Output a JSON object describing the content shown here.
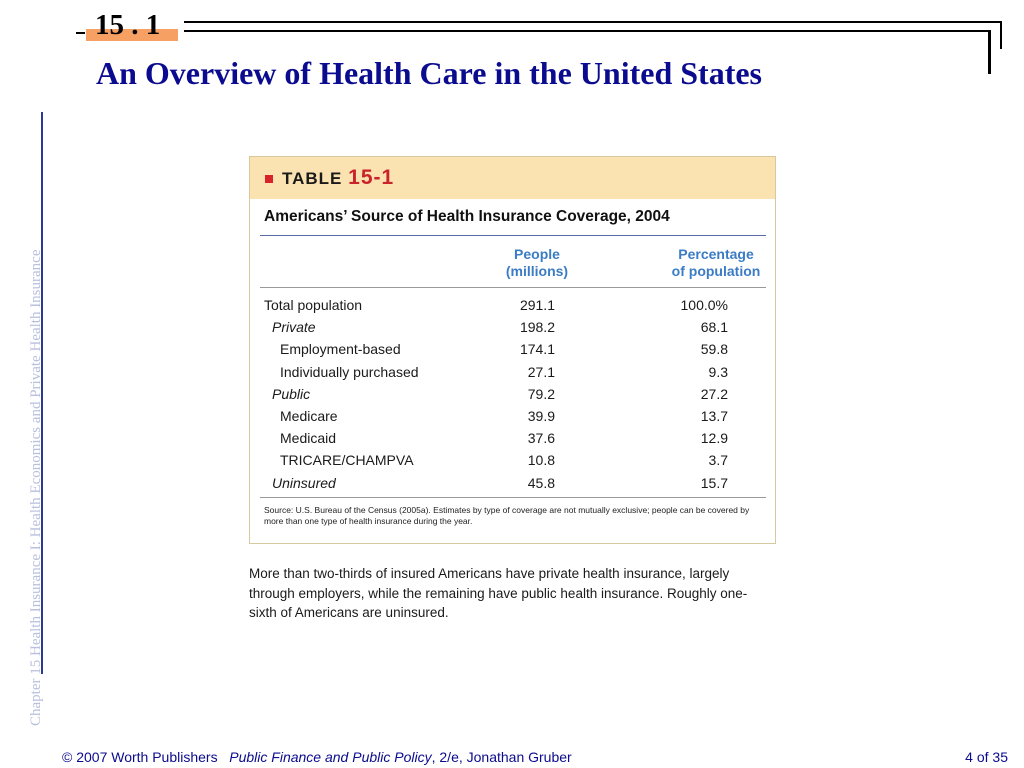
{
  "header": {
    "section_number": "15 . 1",
    "title": "An Overview of Health Care in the United States",
    "sidebar_text": "Chapter 15  Health Insurance I: Health Economics and Private Health Insurance"
  },
  "table": {
    "label_prefix": "TABLE",
    "label_number": "15-1",
    "title": "Americans’ Source of Health Insurance Coverage, 2004",
    "columns": {
      "people": [
        "People",
        "(millions)"
      ],
      "percentage": [
        "Percentage",
        "of population"
      ]
    },
    "rows": [
      {
        "label": "Total population",
        "people": "291.1",
        "percent": "100.0%",
        "indent": 0
      },
      {
        "label": "Private",
        "people": "198.2",
        "percent": "68.1",
        "indent": 1
      },
      {
        "label": "Employment-based",
        "people": "174.1",
        "percent": "59.8",
        "indent": 2
      },
      {
        "label": "Individually purchased",
        "people": "27.1",
        "percent": "9.3",
        "indent": 2
      },
      {
        "label": "Public",
        "people": "79.2",
        "percent": "27.2",
        "indent": 1
      },
      {
        "label": "Medicare",
        "people": "39.9",
        "percent": "13.7",
        "indent": 2
      },
      {
        "label": "Medicaid",
        "people": "37.6",
        "percent": "12.9",
        "indent": 2
      },
      {
        "label": "TRICARE/CHAMPVA",
        "people": "10.8",
        "percent": "3.7",
        "indent": 2
      },
      {
        "label": "Uninsured",
        "people": "45.8",
        "percent": "15.7",
        "indent": 1
      }
    ],
    "source": "Source: U.S. Bureau of the Census (2005a). Estimates by type of coverage are not mutually exclusive; people can be covered by more than one type of health insurance during the year."
  },
  "caption": "More than two-thirds of insured Americans have private health insurance, largely through employers, while the remaining have public health insurance. Roughly one-sixth of Americans are uninsured.",
  "footer": {
    "copyright": "© 2007 Worth Publishers",
    "book_title": "Public Finance and Public Policy",
    "edition_author": ", 2/e, Jonathan Gruber",
    "page": "4 of 35"
  }
}
